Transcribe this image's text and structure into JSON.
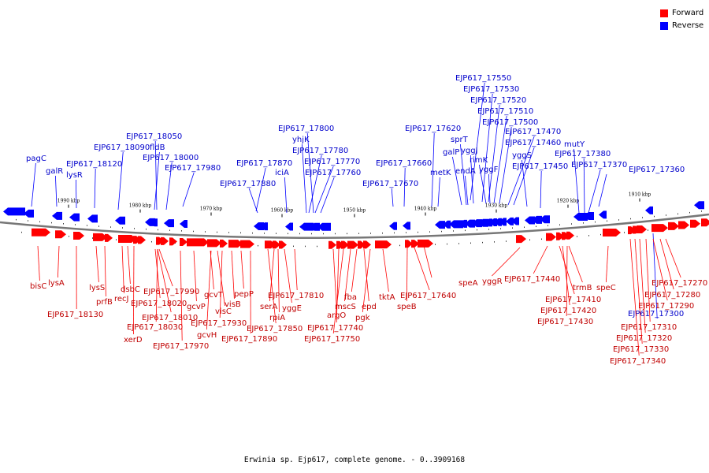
{
  "legend": {
    "forward": {
      "label": "Forward",
      "color": "#ff0000"
    },
    "reverse": {
      "label": "Reverse",
      "color": "#0000ff"
    }
  },
  "caption": "Erwinia sp. Ejp617, complete genome. - 0..3909168",
  "colors": {
    "forward_label": "#c00000",
    "reverse_label": "#0000cc",
    "backbone": "#777777",
    "tick": "#000000"
  },
  "ticks": [
    "1990 kbp",
    "1980 kbp",
    "1970 kbp",
    "1960 kbp",
    "1950 kbp",
    "1940 kbp",
    "1930 kbp",
    "1920 kbp",
    "1910 kbp"
  ],
  "reverse_labels": [
    "EJP617_17550",
    "EJP617_17530",
    "EJP617_17520",
    "EJP617_17510",
    "EJP617_17500",
    "EJP617_17470",
    "EJP617_17460",
    "mutY",
    "EJP617_17380",
    "yggS",
    "EJP617_17450",
    "EJP617_17370",
    "EJP617_17360",
    "rimK",
    "yggF",
    "yggJ",
    "endA",
    "galP",
    "sprT",
    "metK",
    "EJP617_17620",
    "EJP617_17660",
    "EJP617_17670",
    "EJP617_17800",
    "yhjK",
    "EJP617_17780",
    "EJP617_17770",
    "EJP617_17760",
    "iciA",
    "EJP617_17870",
    "EJP617_17880",
    "EJP617_18050",
    "fldB",
    "EJP617_18000",
    "EJP617_17980",
    "EJP617_18090",
    "EJP617_18120",
    "lysR",
    "galR",
    "pagC",
    "EJP617_17300"
  ],
  "forward_labels": [
    "bisC",
    "lysA",
    "EJP617_18130",
    "lysS",
    "prfB",
    "recJ",
    "dsbC",
    "xerD",
    "EJP617_17990",
    "EJP617_18020",
    "EJP617_18010",
    "EJP617_18030",
    "EJP617_17970",
    "gcvP",
    "gcvT",
    "gcvH",
    "visC",
    "EJP617_17930",
    "visB",
    "pepP",
    "EJP617_17890",
    "EJP617_17850",
    "serA",
    "rpiA",
    "yggE",
    "EJP617_17810",
    "argO",
    "EJP617_17740",
    "EJP617_17750",
    "mscS",
    "fba",
    "epd",
    "pgk",
    "tktA",
    "speB",
    "EJP617_17640",
    "speA",
    "yggR",
    "EJP617_17440",
    "trmB",
    "EJP617_17410",
    "EJP617_17420",
    "EJP617_17430",
    "speC",
    "EJP617_17270",
    "EJP617_17280",
    "EJP617_17290",
    "EJP617_17310",
    "EJP617_17320",
    "EJP617_17330",
    "EJP617_17340"
  ]
}
